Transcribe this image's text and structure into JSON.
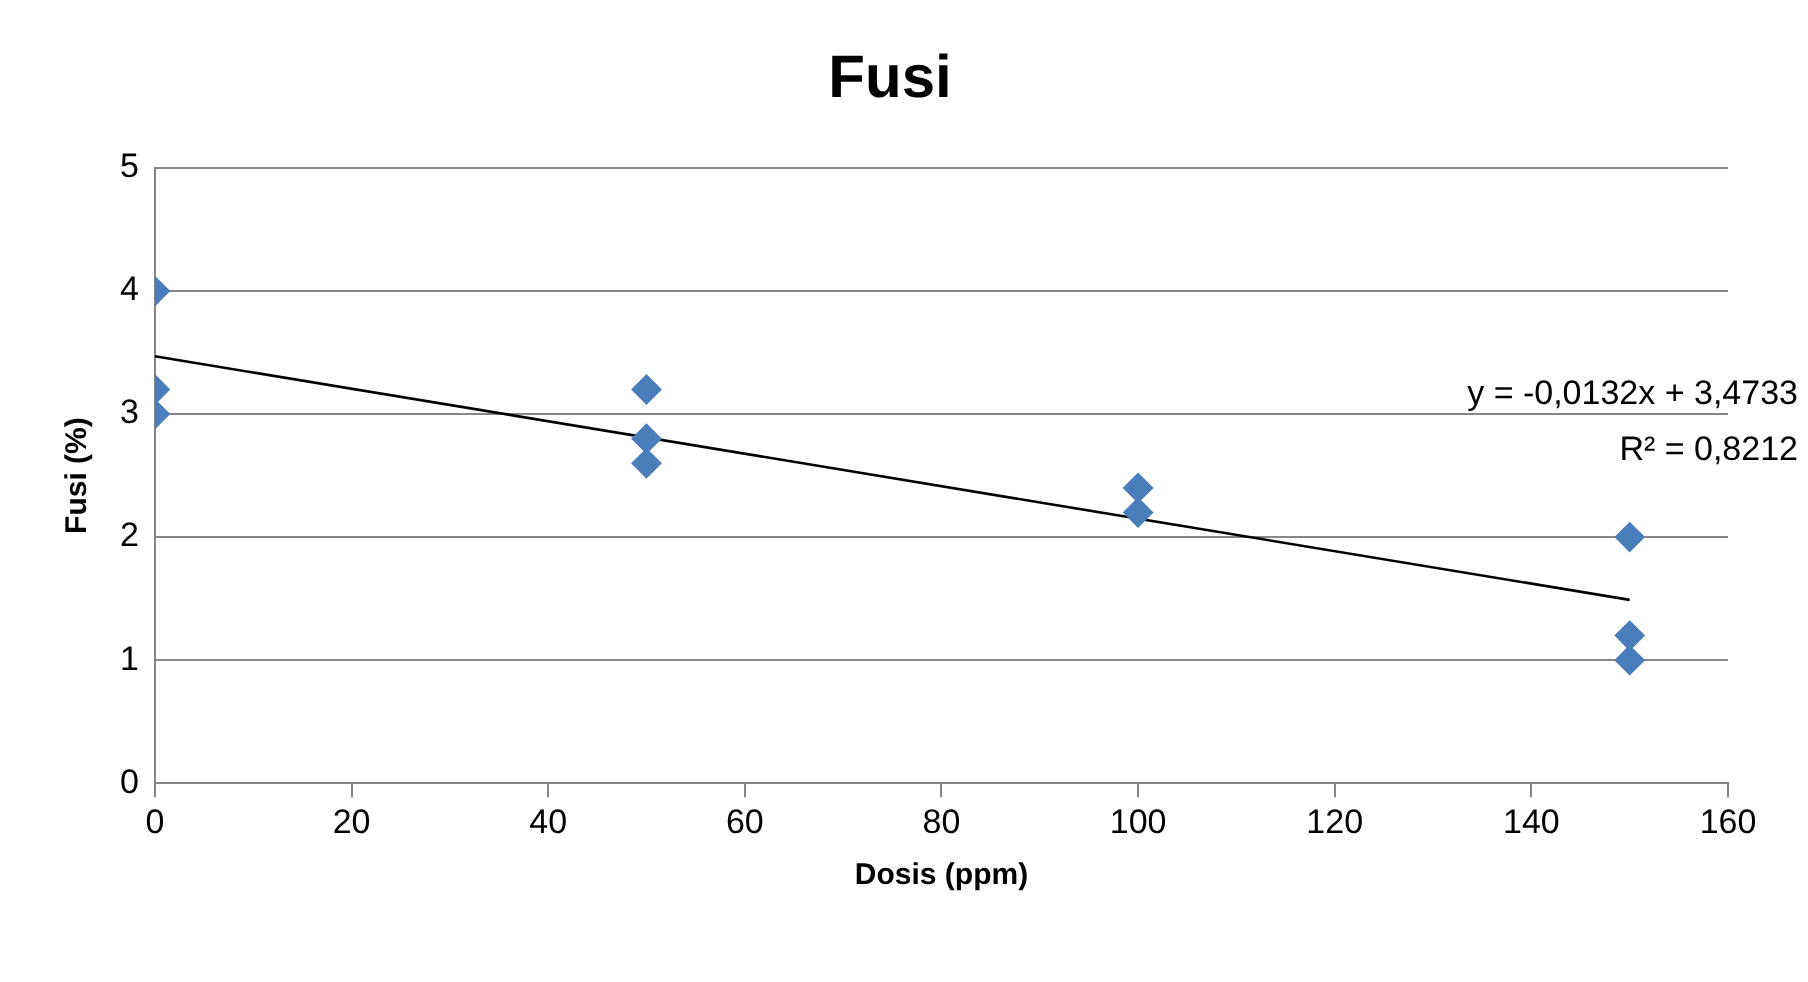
{
  "chart_data": {
    "type": "scatter",
    "title": "Fusi",
    "xlabel": "Dosis (ppm)",
    "ylabel": "Fusi (%)",
    "series": [
      {
        "color": "#4a7ebb",
        "marker": "diamond",
        "x": [
          0,
          0,
          0,
          50,
          50,
          50,
          100,
          100,
          150,
          150,
          150
        ],
        "values": [
          4,
          3.2,
          3,
          3.2,
          2.8,
          2.6,
          2.4,
          2.2,
          2,
          1.2,
          1
        ]
      },
      {
        "type": "line",
        "color": "#000000",
        "marker": "none",
        "x": [
          0,
          150
        ],
        "values": [
          3.47,
          1.49
        ]
      }
    ],
    "annotations": [
      "y = -0,0132x + 3,4733",
      "R² = 0,8212"
    ],
    "xlim": [
      0,
      160
    ],
    "xticks": [
      0,
      20,
      40,
      60,
      80,
      100,
      120,
      140,
      160
    ],
    "ylim": [
      0,
      5
    ],
    "yticks": [
      0,
      1,
      2,
      3,
      4,
      5
    ],
    "grid": "y",
    "legend": false
  }
}
